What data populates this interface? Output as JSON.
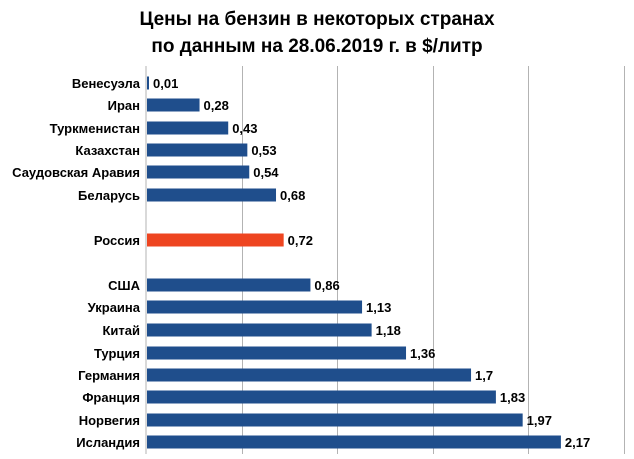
{
  "chart_data": {
    "type": "bar",
    "orientation": "horizontal",
    "title_lines": [
      "Цены на бензин в некоторых странах",
      "по данным на 28.06.2019 г. в $/литр"
    ],
    "categories": [
      "Венесуэла",
      "Иран",
      "Туркменистан",
      "Казахстан",
      "Саудовская Аравия",
      "Беларусь",
      "Россия",
      "США",
      "Украина",
      "Китай",
      "Турция",
      "Германия",
      "Франция",
      "Норвегия",
      "Исландия"
    ],
    "values": [
      0.01,
      0.28,
      0.43,
      0.53,
      0.54,
      0.68,
      0.72,
      0.86,
      1.13,
      1.18,
      1.36,
      1.7,
      1.83,
      1.97,
      2.17
    ],
    "value_labels": [
      "0,01",
      "0,28",
      "0,43",
      "0,53",
      "0,54",
      "0,68",
      "0,72",
      "0,86",
      "1,13",
      "1,18",
      "1,36",
      "1,7",
      "1,83",
      "1,97",
      "2,17"
    ],
    "highlight_category": "Россия",
    "xlim": [
      0,
      2.5
    ],
    "x_gridlines": [
      0.5,
      1.0,
      1.5,
      2.0,
      2.5
    ],
    "grid": true,
    "colors": {
      "bar": "#1f4e8c",
      "highlight": "#ee4520",
      "grid": "#b3b3b3"
    }
  }
}
